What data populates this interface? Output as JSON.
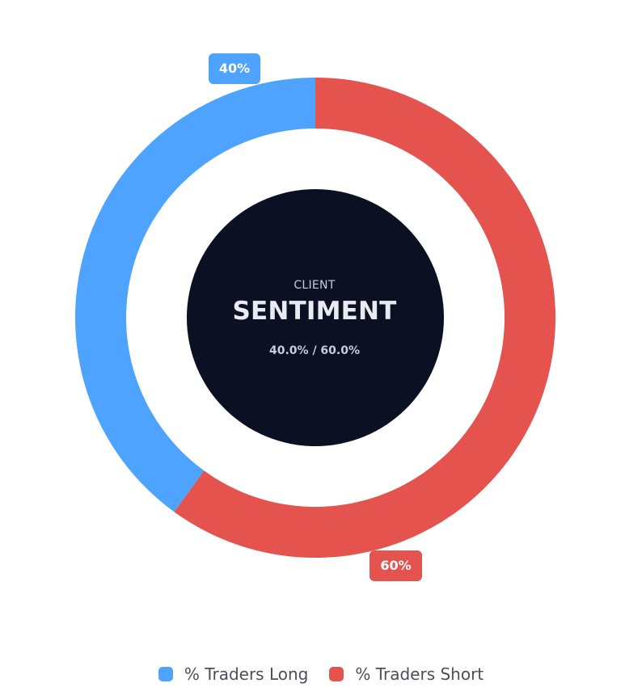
{
  "chart_data": {
    "type": "pie",
    "variant": "donut",
    "series": [
      {
        "name": "% Traders Long",
        "value": 40,
        "label": "40%",
        "color": "#4da3fe"
      },
      {
        "name": "% Traders Short",
        "value": 60,
        "label": "60%",
        "color": "#e5534f"
      }
    ],
    "center": {
      "subtitle": "CLIENT",
      "title": "SENTIMENT",
      "ratio": "40.0% / 60.0%"
    },
    "center_color": "#0b1122",
    "legend": {
      "placement": "bottom-center"
    }
  }
}
